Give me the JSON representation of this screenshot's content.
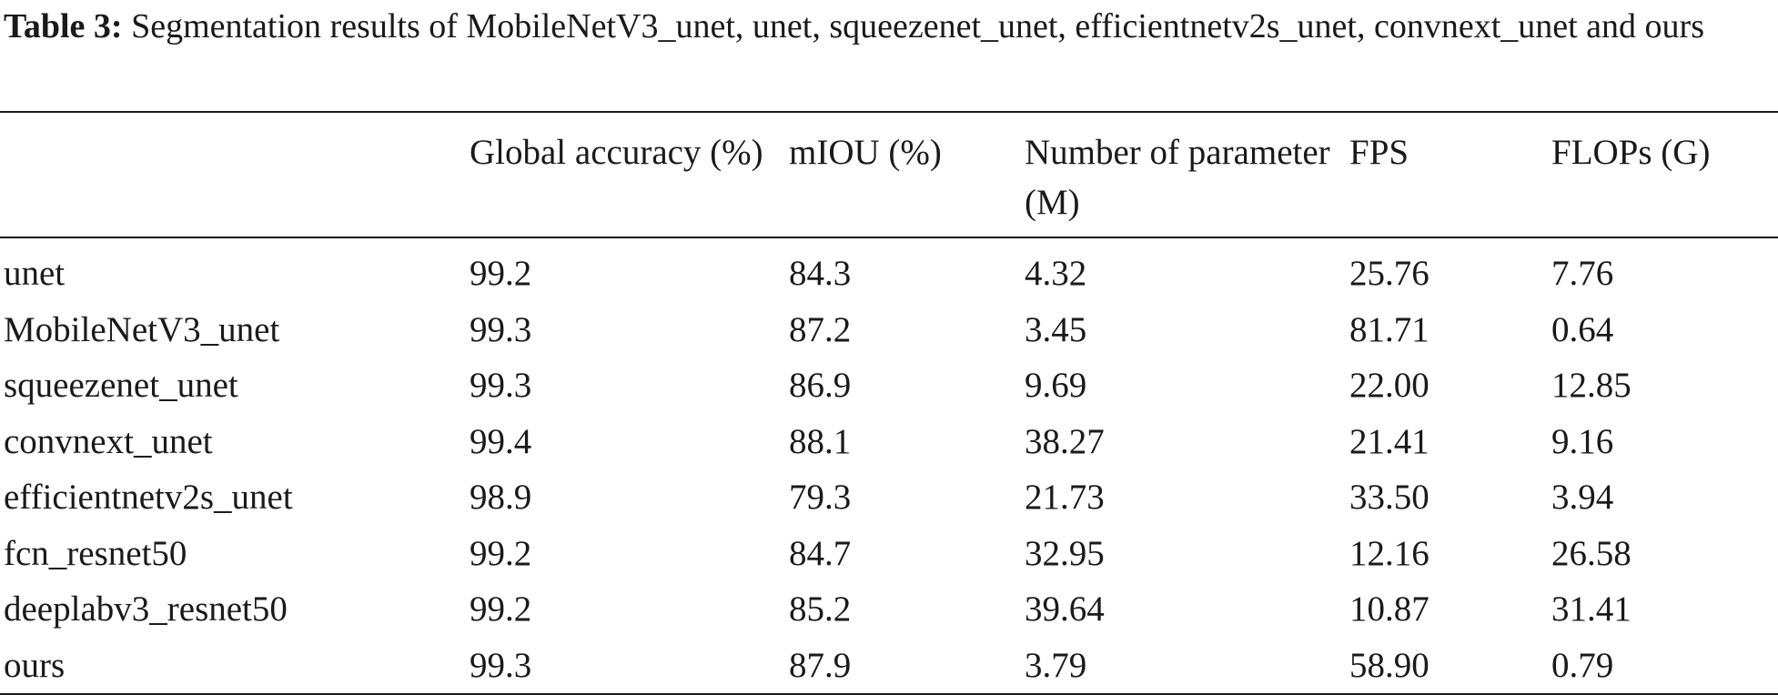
{
  "caption": {
    "label": "Table 3:",
    "text": " Segmentation results of MobileNetV3_unet, unet, squeezenet_unet, efficientnetv2s_unet, convnext_unet and ours"
  },
  "table": {
    "headers": [
      "",
      "Global accuracy (%)",
      "mIOU (%)",
      "Number of parameter (M)",
      "FPS",
      "FLOPs (G)"
    ],
    "rows": [
      [
        "unet",
        "99.2",
        "84.3",
        "4.32",
        "25.76",
        "7.76"
      ],
      [
        "MobileNetV3_unet",
        "99.3",
        "87.2",
        "3.45",
        "81.71",
        "0.64"
      ],
      [
        "squeezenet_unet",
        "99.3",
        "86.9",
        "9.69",
        "22.00",
        "12.85"
      ],
      [
        "convnext_unet",
        "99.4",
        "88.1",
        "38.27",
        "21.41",
        "9.16"
      ],
      [
        "efficientnetv2s_unet",
        "98.9",
        "79.3",
        "21.73",
        "33.50",
        "3.94"
      ],
      [
        "fcn_resnet50",
        "99.2",
        "84.7",
        "32.95",
        "12.16",
        "26.58"
      ],
      [
        "deeplabv3_resnet50",
        "99.2",
        "85.2",
        "39.64",
        "10.87",
        "31.41"
      ],
      [
        "ours",
        "99.3",
        "87.9",
        "3.79",
        "58.90",
        "0.79"
      ]
    ]
  }
}
